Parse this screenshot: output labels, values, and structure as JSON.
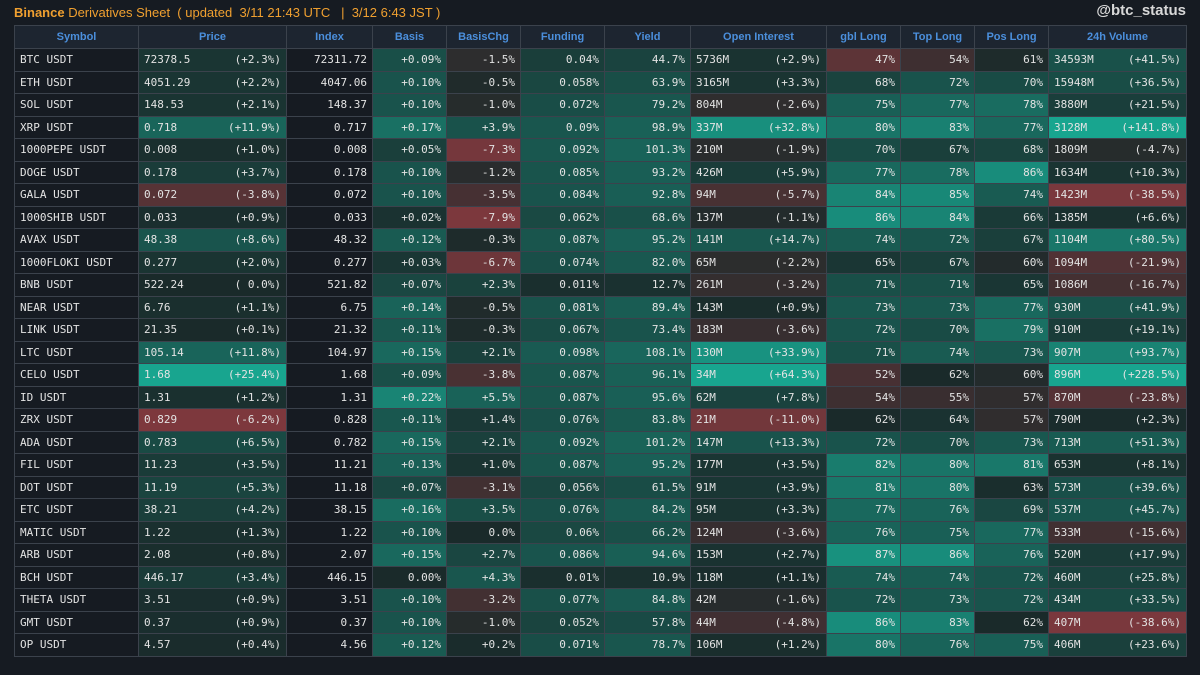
{
  "header": {
    "brand": "Binance",
    "subtitle": " Derivatives Sheet  ( updated  3/11 21:43 UTC   |  3/12 6:43 JST )",
    "handle": "@btc_status"
  },
  "columns": [
    "Symbol",
    "Price",
    "Index",
    "Basis",
    "BasisChg",
    "Funding",
    "Yield",
    "Open Interest",
    "gbl Long",
    "Top Long",
    "Pos Long",
    "24h Volume"
  ],
  "rows": [
    [
      "BTC USDT",
      "72378.5",
      "(+2.3%)",
      "72311.72",
      "+0.09%",
      "-1.5%",
      "0.04%",
      "44.7%",
      "5736M",
      "(+2.9%)",
      "47%",
      "54%",
      "61%",
      "34593M",
      "(+41.5%)"
    ],
    [
      "ETH USDT",
      "4051.29",
      "(+2.2%)",
      "4047.06",
      "+0.10%",
      "-0.5%",
      "0.058%",
      "63.9%",
      "3165M",
      "(+3.3%)",
      "68%",
      "72%",
      "70%",
      "15948M",
      "(+36.5%)"
    ],
    [
      "SOL USDT",
      "148.53",
      "(+2.1%)",
      "148.37",
      "+0.10%",
      "-1.0%",
      "0.072%",
      "79.2%",
      "804M",
      "(-2.6%)",
      "75%",
      "77%",
      "78%",
      "3880M",
      "(+21.5%)"
    ],
    [
      "XRP USDT",
      "0.718",
      "(+11.9%)",
      "0.717",
      "+0.17%",
      "+3.9%",
      "0.09%",
      "98.9%",
      "337M",
      "(+32.8%)",
      "80%",
      "83%",
      "77%",
      "3128M",
      "(+141.8%)"
    ],
    [
      "1000PEPE USDT",
      "0.008",
      "(+1.0%)",
      "0.008",
      "+0.05%",
      "-7.3%",
      "0.092%",
      "101.3%",
      "210M",
      "(-1.9%)",
      "70%",
      "67%",
      "68%",
      "1809M",
      "(-4.7%)"
    ],
    [
      "DOGE USDT",
      "0.178",
      "(+3.7%)",
      "0.178",
      "+0.10%",
      "-1.2%",
      "0.085%",
      "93.2%",
      "426M",
      "(+5.9%)",
      "77%",
      "78%",
      "86%",
      "1634M",
      "(+10.3%)"
    ],
    [
      "GALA USDT",
      "0.072",
      "(-3.8%)",
      "0.072",
      "+0.10%",
      "-3.5%",
      "0.084%",
      "92.8%",
      "94M",
      "(-5.7%)",
      "84%",
      "85%",
      "74%",
      "1423M",
      "(-38.5%)"
    ],
    [
      "1000SHIB USDT",
      "0.033",
      "(+0.9%)",
      "0.033",
      "+0.02%",
      "-7.9%",
      "0.062%",
      "68.6%",
      "137M",
      "(-1.1%)",
      "86%",
      "84%",
      "66%",
      "1385M",
      "(+6.6%)"
    ],
    [
      "AVAX USDT",
      "48.38",
      "(+8.6%)",
      "48.32",
      "+0.12%",
      "-0.3%",
      "0.087%",
      "95.2%",
      "141M",
      "(+14.7%)",
      "74%",
      "72%",
      "67%",
      "1104M",
      "(+80.5%)"
    ],
    [
      "1000FLOKI USDT",
      "0.277",
      "(+2.0%)",
      "0.277",
      "+0.03%",
      "-6.7%",
      "0.074%",
      "82.0%",
      "65M",
      "(-2.2%)",
      "65%",
      "67%",
      "60%",
      "1094M",
      "(-21.9%)"
    ],
    [
      "BNB USDT",
      "522.24",
      "( 0.0%)",
      "521.82",
      "+0.07%",
      "+2.3%",
      "0.011%",
      "12.7%",
      "261M",
      "(-3.2%)",
      "71%",
      "71%",
      "65%",
      "1086M",
      "(-16.7%)"
    ],
    [
      "NEAR USDT",
      "6.76",
      "(+1.1%)",
      "6.75",
      "+0.14%",
      "-0.5%",
      "0.081%",
      "89.4%",
      "143M",
      "(+0.9%)",
      "73%",
      "73%",
      "77%",
      "930M",
      "(+41.9%)"
    ],
    [
      "LINK USDT",
      "21.35",
      "(+0.1%)",
      "21.32",
      "+0.11%",
      "-0.3%",
      "0.067%",
      "73.4%",
      "183M",
      "(-3.6%)",
      "72%",
      "70%",
      "79%",
      "910M",
      "(+19.1%)"
    ],
    [
      "LTC USDT",
      "105.14",
      "(+11.8%)",
      "104.97",
      "+0.15%",
      "+2.1%",
      "0.098%",
      "108.1%",
      "130M",
      "(+33.9%)",
      "71%",
      "74%",
      "73%",
      "907M",
      "(+93.7%)"
    ],
    [
      "CELO USDT",
      "1.68",
      "(+25.4%)",
      "1.68",
      "+0.09%",
      "-3.8%",
      "0.087%",
      "96.1%",
      "34M",
      "(+64.3%)",
      "52%",
      "62%",
      "60%",
      "896M",
      "(+228.5%)"
    ],
    [
      "ID USDT",
      "1.31",
      "(+1.2%)",
      "1.31",
      "+0.22%",
      "+5.5%",
      "0.087%",
      "95.6%",
      "62M",
      "(+7.8%)",
      "54%",
      "55%",
      "57%",
      "870M",
      "(-23.8%)"
    ],
    [
      "ZRX USDT",
      "0.829",
      "(-6.2%)",
      "0.828",
      "+0.11%",
      "+1.4%",
      "0.076%",
      "83.8%",
      "21M",
      "(-11.0%)",
      "62%",
      "64%",
      "57%",
      "790M",
      "(+2.3%)"
    ],
    [
      "ADA USDT",
      "0.783",
      "(+6.5%)",
      "0.782",
      "+0.15%",
      "+2.1%",
      "0.092%",
      "101.2%",
      "147M",
      "(+13.3%)",
      "72%",
      "70%",
      "73%",
      "713M",
      "(+51.3%)"
    ],
    [
      "FIL USDT",
      "11.23",
      "(+3.5%)",
      "11.21",
      "+0.13%",
      "+1.0%",
      "0.087%",
      "95.2%",
      "177M",
      "(+3.5%)",
      "82%",
      "80%",
      "81%",
      "653M",
      "(+8.1%)"
    ],
    [
      "DOT USDT",
      "11.19",
      "(+5.3%)",
      "11.18",
      "+0.07%",
      "-3.1%",
      "0.056%",
      "61.5%",
      "91M",
      "(+3.9%)",
      "81%",
      "80%",
      "63%",
      "573M",
      "(+39.6%)"
    ],
    [
      "ETC USDT",
      "38.21",
      "(+4.2%)",
      "38.15",
      "+0.16%",
      "+3.5%",
      "0.076%",
      "84.2%",
      "95M",
      "(+3.3%)",
      "77%",
      "76%",
      "69%",
      "537M",
      "(+45.7%)"
    ],
    [
      "MATIC USDT",
      "1.22",
      "(+1.3%)",
      "1.22",
      "+0.10%",
      "0.0%",
      "0.06%",
      "66.2%",
      "124M",
      "(-3.6%)",
      "76%",
      "75%",
      "77%",
      "533M",
      "(-15.6%)"
    ],
    [
      "ARB USDT",
      "2.08",
      "(+0.8%)",
      "2.07",
      "+0.15%",
      "+2.7%",
      "0.086%",
      "94.6%",
      "153M",
      "(+2.7%)",
      "87%",
      "86%",
      "76%",
      "520M",
      "(+17.9%)"
    ],
    [
      "BCH USDT",
      "446.17",
      "(+3.4%)",
      "446.15",
      "0.00%",
      "+4.3%",
      "0.01%",
      "10.9%",
      "118M",
      "(+1.1%)",
      "74%",
      "74%",
      "72%",
      "460M",
      "(+25.8%)"
    ],
    [
      "THETA USDT",
      "3.51",
      "(+0.9%)",
      "3.51",
      "+0.10%",
      "-3.2%",
      "0.077%",
      "84.8%",
      "42M",
      "(-1.6%)",
      "72%",
      "73%",
      "72%",
      "434M",
      "(+33.5%)"
    ],
    [
      "GMT USDT",
      "0.37",
      "(+0.9%)",
      "0.37",
      "+0.10%",
      "-1.0%",
      "0.052%",
      "57.8%",
      "44M",
      "(-4.8%)",
      "86%",
      "83%",
      "62%",
      "407M",
      "(-38.6%)"
    ],
    [
      "OP USDT",
      "4.57",
      "(+0.4%)",
      "4.56",
      "+0.12%",
      "+0.2%",
      "0.071%",
      "78.7%",
      "106M",
      "(+1.2%)",
      "80%",
      "76%",
      "75%",
      "406M",
      "(+23.6%)"
    ]
  ],
  "colors": {
    "base": "#161b22",
    "neutral": "#1a2a2a",
    "green_max": "#18a58f",
    "red_max": "#8a3a40",
    "header_text": "#4b8fdc",
    "title_text": "#f0a030"
  }
}
